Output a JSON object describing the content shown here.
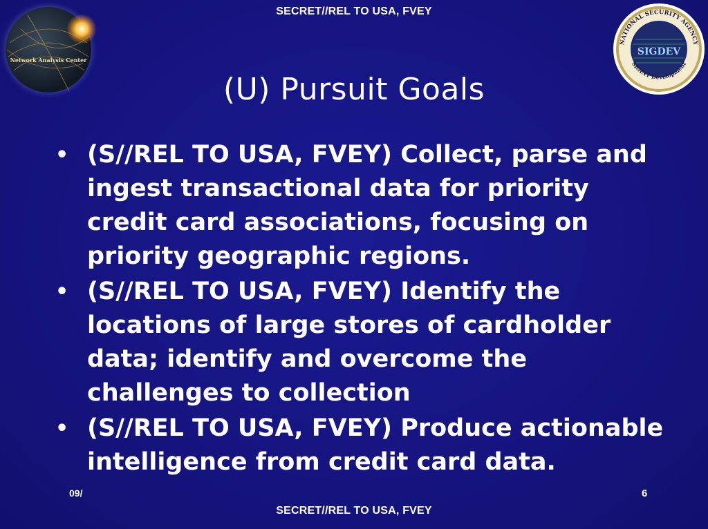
{
  "classification_top": "SECRET//REL TO USA, FVEY",
  "classification_bottom": "SECRET//REL TO USA, FVEY",
  "title": "(U) Pursuit Goals",
  "bullets": [
    {
      "text": "(S//REL TO USA, FVEY) Collect, parse and ingest transactional data for priority credit card associations, focusing on priority geographic regions."
    },
    {
      "text": "(S//REL TO USA, FVEY) Identify the locations of large stores of cardholder data; identify and overcome the challenges to collection"
    },
    {
      "text": "(S//REL TO USA, FVEY) Produce actionable intelligence from credit card data."
    }
  ],
  "bullet_glyph": "•",
  "footer_date": "09/",
  "page_number": "6",
  "logos": {
    "left": {
      "text": "Network Analysis Center",
      "icon": "globe-logo"
    },
    "right": {
      "center": "SIGDEV",
      "ring_top": "NATIONAL SECURITY AGENCY",
      "ring_bottom": "SIGINT Development",
      "icon": "nsa-seal"
    }
  },
  "colors": {
    "background": "#15147f",
    "text": "#ffffff"
  }
}
